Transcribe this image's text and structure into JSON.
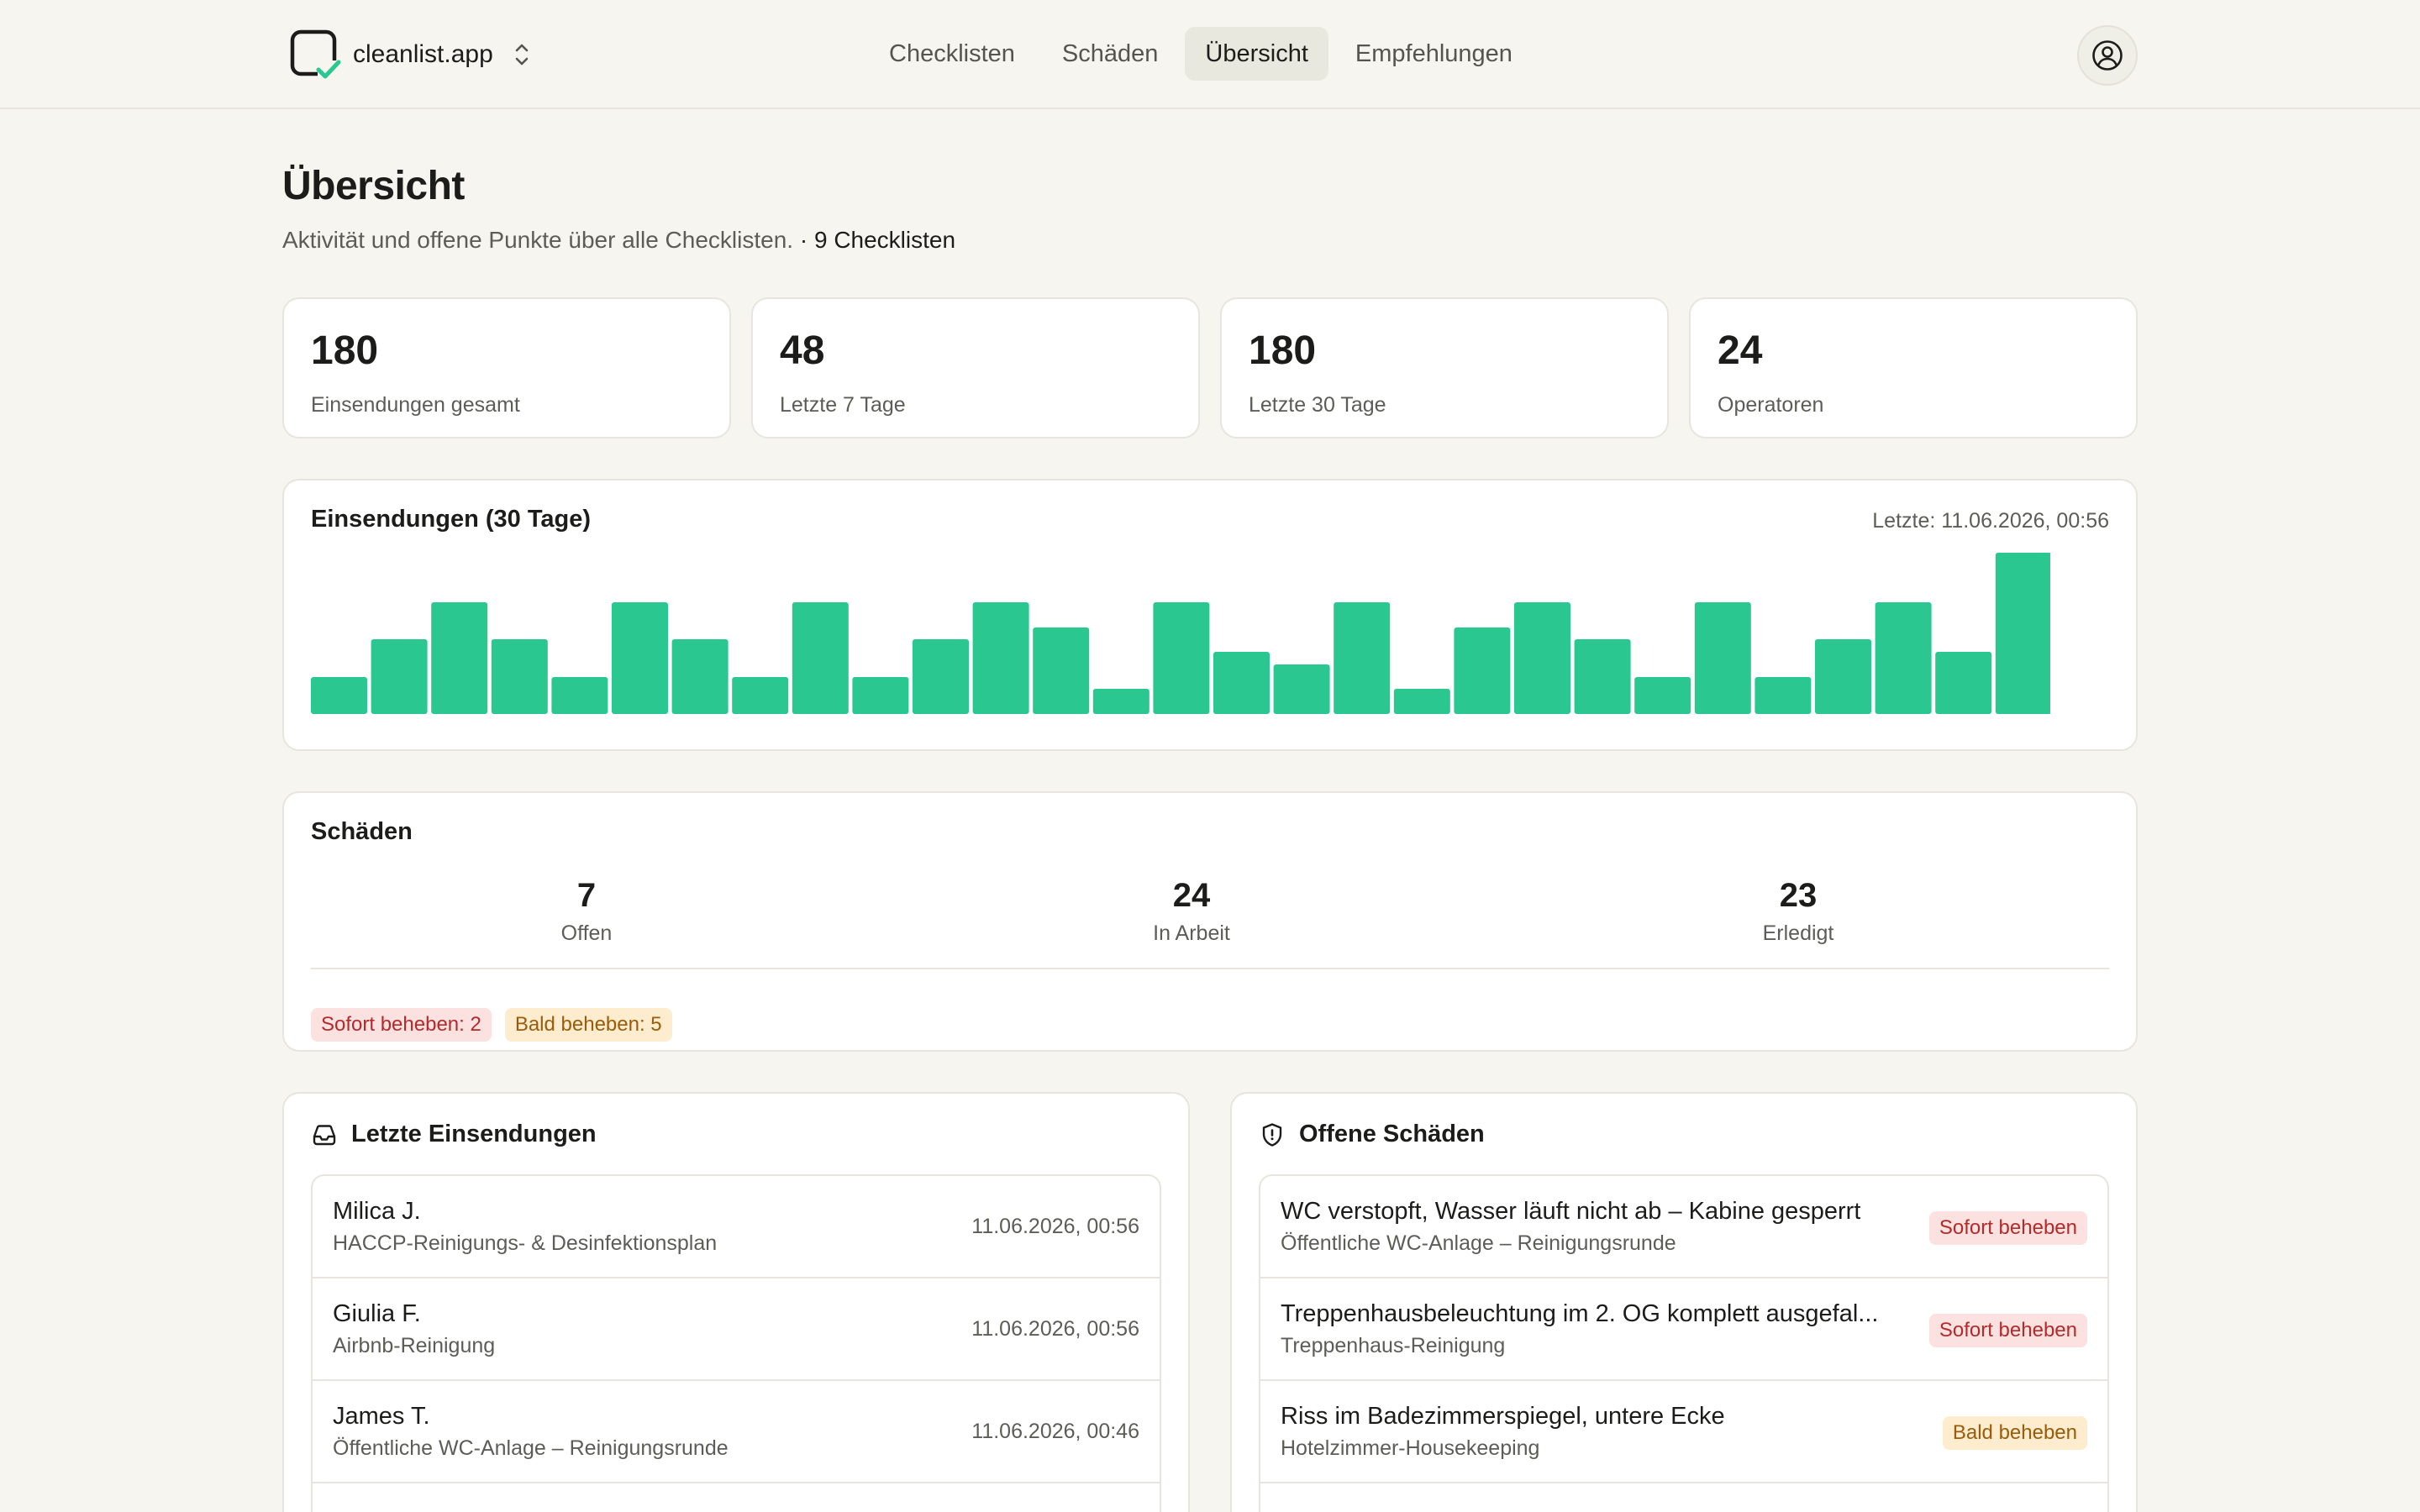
{
  "header": {
    "brand": "cleanlist.app",
    "nav": [
      {
        "label": "Checklisten",
        "active": false
      },
      {
        "label": "Schäden",
        "active": false
      },
      {
        "label": "Übersicht",
        "active": true
      },
      {
        "label": "Empfehlungen",
        "active": false
      }
    ],
    "user_icon": "user-circle-icon"
  },
  "page": {
    "title": "Übersicht",
    "subtitle": "Aktivität und offene Punkte über alle Checklisten.",
    "checklist_count": "· 9 Checklisten"
  },
  "stats": [
    {
      "value": "180",
      "label": "Einsendungen gesamt"
    },
    {
      "value": "48",
      "label": "Letzte 7 Tage"
    },
    {
      "value": "180",
      "label": "Letzte 30 Tage"
    },
    {
      "value": "24",
      "label": "Operatoren"
    }
  ],
  "chart_data": {
    "type": "bar",
    "title": "Einsendungen (30 Tage)",
    "meta": "Letzte: 11.06.2026, 00:56",
    "color": "#2ac890",
    "values": [
      3,
      6,
      9,
      6,
      3,
      9,
      6,
      3,
      9,
      3,
      6,
      9,
      7,
      2,
      9,
      5,
      4,
      9,
      2,
      7,
      9,
      6,
      3,
      9,
      3,
      6,
      9,
      5,
      13
    ],
    "ymax": 13
  },
  "damages": {
    "title": "Schäden",
    "columns": [
      {
        "value": "7",
        "label": "Offen"
      },
      {
        "value": "24",
        "label": "In Arbeit"
      },
      {
        "value": "23",
        "label": "Erledigt"
      }
    ],
    "badges": {
      "urgent": "Sofort beheben: 2",
      "soon": "Bald beheben: 5"
    }
  },
  "recent": {
    "title": "Letzte Einsendungen",
    "icon": "inbox-icon",
    "items": [
      {
        "name": "Milica J.",
        "checklist": "HACCP-Reinigungs- & Desinfektionsplan",
        "time": "11.06.2026, 00:56"
      },
      {
        "name": "Giulia F.",
        "checklist": "Airbnb-Reinigung",
        "time": "11.06.2026, 00:56"
      },
      {
        "name": "James T.",
        "checklist": "Öffentliche WC-Anlage – Reinigungsrunde",
        "time": "11.06.2026, 00:46"
      }
    ]
  },
  "open_damages": {
    "title": "Offene Schäden",
    "icon": "shield-icon",
    "items": [
      {
        "title": "WC verstopft, Wasser läuft nicht ab – Kabine gesperrt",
        "location": "Öffentliche WC-Anlage – Reinigungsrunde",
        "priority": "Sofort beheben",
        "level": "red"
      },
      {
        "title": "Treppenhausbeleuchtung im 2. OG komplett ausgefal...",
        "location": "Treppenhaus-Reinigung",
        "priority": "Sofort beheben",
        "level": "red"
      },
      {
        "title": "Riss im Badezimmerspiegel, untere Ecke",
        "location": "Hotelzimmer-Housekeeping",
        "priority": "Bald beheben",
        "level": "amber"
      }
    ]
  }
}
